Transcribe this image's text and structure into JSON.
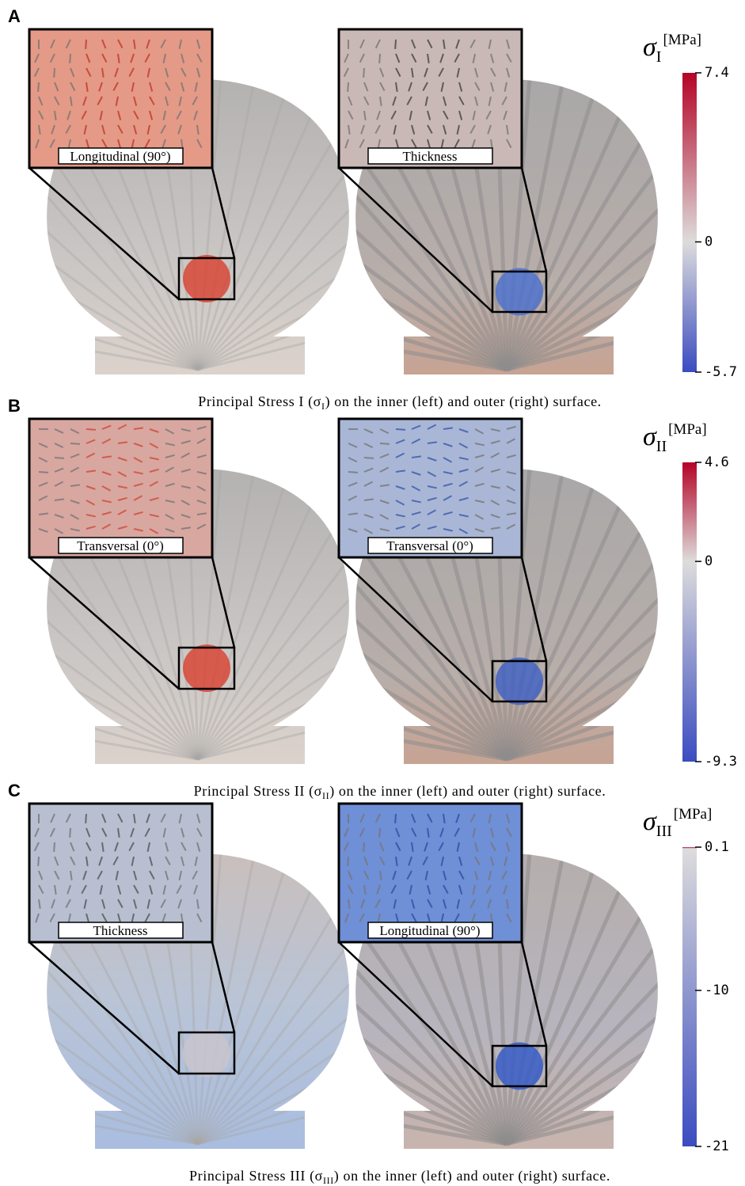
{
  "panels": [
    {
      "letter": "A",
      "insets": [
        "Longitudinal (90°)",
        "Thickness"
      ],
      "colorbar": {
        "symbol": "σ",
        "subscript": "I",
        "unit": "[MPa]",
        "range": [
          -5.7,
          7.4
        ],
        "ticks": [
          7.4,
          0,
          -5.7
        ]
      },
      "caption": {
        "before": "Principal Stress I (σ",
        "sub": "I",
        "after": ") on the inner (left) and outer (right) surface."
      }
    },
    {
      "letter": "B",
      "insets": [
        "Transversal (0°)",
        "Transversal (0°)"
      ],
      "colorbar": {
        "symbol": "σ",
        "subscript": "II",
        "unit": "[MPa]",
        "range": [
          -9.3,
          4.6
        ],
        "ticks": [
          4.6,
          0,
          -9.3
        ]
      },
      "caption": {
        "before": "Principal Stress II (σ",
        "sub": "II",
        "after": ") on the inner (left) and outer (right) surface."
      }
    },
    {
      "letter": "C",
      "insets": [
        "Thickness",
        "Longitudinal (90°)"
      ],
      "colorbar": {
        "symbol": "σ",
        "subscript": "III",
        "unit": "[MPa]",
        "range": [
          -21,
          0.1
        ],
        "ticks": [
          0.1,
          -10,
          -21
        ]
      },
      "caption": {
        "before": "Principal Stress III (σ",
        "sub": "III",
        "after": ") on the inner (left) and outer (right) surface."
      }
    }
  ]
}
